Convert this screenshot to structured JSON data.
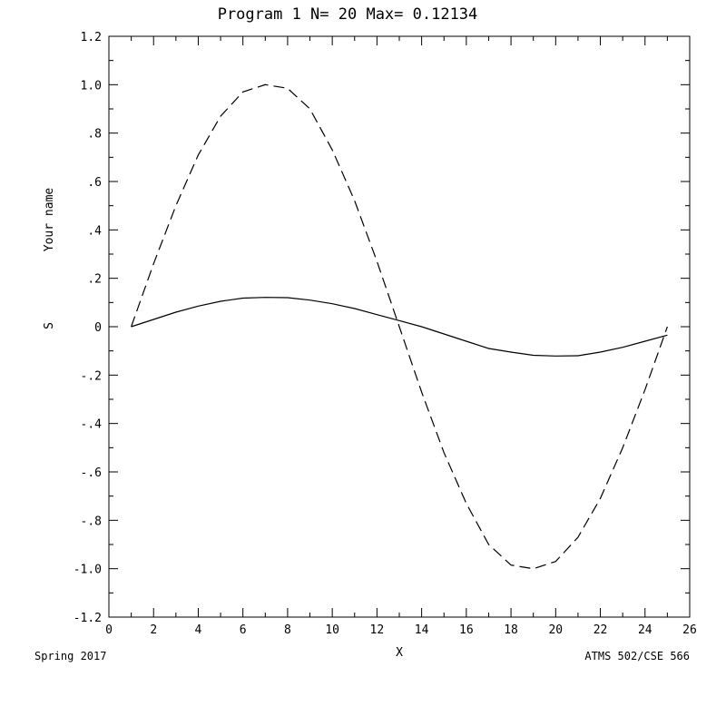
{
  "chart_data": {
    "type": "line",
    "title": "Program 1  N=  20 Max= 0.12134",
    "xlabel": "X",
    "ylabel": "Your name",
    "ylabel_short": "S",
    "xlim": [
      0,
      26
    ],
    "ylim": [
      -1.2,
      1.2
    ],
    "xticks": [
      "0",
      "2",
      "4",
      "6",
      "8",
      "10",
      "12",
      "14",
      "16",
      "18",
      "20",
      "22",
      "24",
      "26"
    ],
    "xtick_values": [
      0,
      2,
      4,
      6,
      8,
      10,
      12,
      14,
      16,
      18,
      20,
      22,
      24,
      26
    ],
    "yticks": [
      "1.2",
      "1.0",
      ".8",
      ".6",
      ".4",
      ".2",
      "0",
      "-.2",
      "-.4",
      "-.6",
      "-.8",
      "-1.0",
      "-1.2"
    ],
    "ytick_values": [
      1.2,
      1.0,
      0.8,
      0.6,
      0.4,
      0.2,
      0,
      -0.2,
      -0.4,
      -0.6,
      -0.8,
      -1.0,
      -1.2
    ],
    "footer_left": "Spring 2017",
    "footer_right": "ATMS 502/CSE 566",
    "grid": false,
    "series": [
      {
        "style": "dashed",
        "x": [
          1,
          2,
          3,
          4,
          5,
          6,
          7,
          8,
          9,
          10,
          11,
          12,
          13,
          14,
          15,
          16,
          17,
          18,
          19,
          20,
          21,
          22,
          23,
          24,
          25
        ],
        "y": [
          0.0,
          0.26,
          0.5,
          0.71,
          0.87,
          0.97,
          1.0,
          0.985,
          0.9,
          0.73,
          0.52,
          0.27,
          0.0,
          -0.27,
          -0.52,
          -0.73,
          -0.9,
          -0.985,
          -1.0,
          -0.97,
          -0.87,
          -0.71,
          -0.5,
          -0.26,
          0.0
        ]
      },
      {
        "style": "solid",
        "x": [
          1,
          2,
          3,
          4,
          5,
          6,
          7,
          8,
          9,
          10,
          11,
          12,
          13,
          14,
          15,
          16,
          17,
          18,
          19,
          20,
          21,
          22,
          23,
          24,
          25
        ],
        "y": [
          0.0,
          0.03,
          0.06,
          0.085,
          0.105,
          0.118,
          0.121,
          0.12,
          0.11,
          0.095,
          0.075,
          0.05,
          0.025,
          0.0,
          -0.03,
          -0.06,
          -0.09,
          -0.105,
          -0.118,
          -0.121,
          -0.12,
          -0.105,
          -0.085,
          -0.06,
          -0.035
        ]
      }
    ]
  }
}
